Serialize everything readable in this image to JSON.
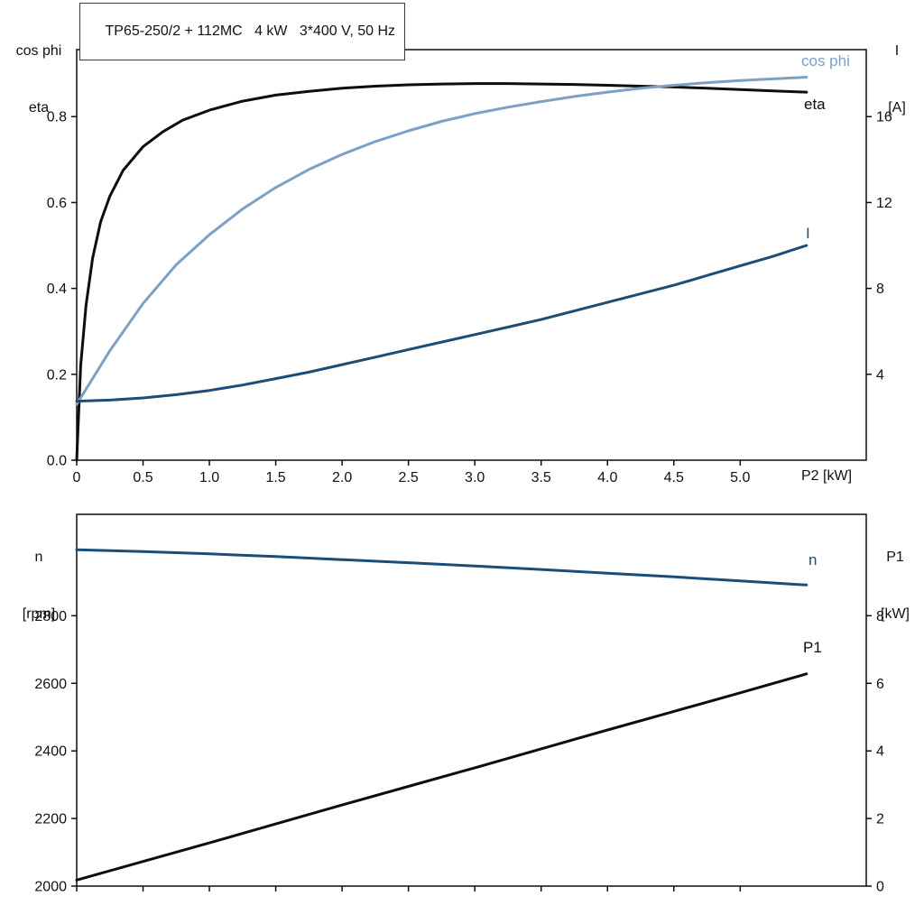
{
  "title": "TP65-250/2 + 112MC   4 kW   3*400 V, 50 Hz",
  "colors": {
    "black": "#0d0d0d",
    "light_blue": "#7da0c4",
    "dark_blue": "#1a4d77",
    "axis": "#0d0d0d"
  },
  "top_chart": {
    "y_left_title": [
      "cos phi",
      "eta"
    ],
    "y_right_title": [
      "I",
      "[A]"
    ],
    "x_title": "P2 [kW]",
    "curve_labels": {
      "cos_phi": "cos phi",
      "eta": "eta",
      "current": "I"
    }
  },
  "bottom_chart": {
    "y_left_title": [
      "n",
      "[rpm]"
    ],
    "y_right_title": [
      "P1",
      "[kW]"
    ],
    "curve_labels": {
      "n": "n",
      "p1": "P1"
    }
  },
  "chart_data": [
    {
      "name": "motor-performance",
      "type": "line",
      "title": "TP65-250/2 + 112MC   4 kW   3*400 V, 50 Hz",
      "xlabel": "P2 [kW]",
      "ylabel_left": "cos phi / eta",
      "ylabel_right": "I [A]",
      "xlim": [
        0,
        5.95
      ],
      "ylim_left": [
        0,
        0.956
      ],
      "ylim_right": [
        0,
        19.12
      ],
      "grid": false,
      "legend_position": "inline-right",
      "x_ticks": {
        "values": [
          0,
          0.5,
          1.0,
          1.5,
          2.0,
          2.5,
          3.0,
          3.5,
          4.0,
          4.5,
          5.0
        ],
        "labels": [
          "0",
          "0.5",
          "1.0",
          "1.5",
          "2.0",
          "2.5",
          "3.0",
          "3.5",
          "4.0",
          "4.5",
          "5.0"
        ]
      },
      "y_ticks_left": {
        "values": [
          0.0,
          0.2,
          0.4,
          0.6,
          0.8
        ],
        "labels": [
          "0.0",
          "0.2",
          "0.4",
          "0.6",
          "0.8"
        ]
      },
      "y_ticks_right": {
        "values": [
          4,
          8,
          12,
          16
        ],
        "labels": [
          "4",
          "8",
          "12",
          "16"
        ]
      },
      "series": [
        {
          "id": "eta",
          "name": "eta",
          "axis": "left",
          "color": "black",
          "points": [
            [
              0,
              0
            ],
            [
              0.03,
              0.22
            ],
            [
              0.07,
              0.36
            ],
            [
              0.12,
              0.47
            ],
            [
              0.18,
              0.555
            ],
            [
              0.25,
              0.615
            ],
            [
              0.35,
              0.675
            ],
            [
              0.5,
              0.73
            ],
            [
              0.65,
              0.765
            ],
            [
              0.8,
              0.792
            ],
            [
              1.0,
              0.815
            ],
            [
              1.25,
              0.836
            ],
            [
              1.5,
              0.85
            ],
            [
              1.75,
              0.859
            ],
            [
              2.0,
              0.866
            ],
            [
              2.25,
              0.871
            ],
            [
              2.5,
              0.874
            ],
            [
              2.75,
              0.876
            ],
            [
              3.0,
              0.877
            ],
            [
              3.25,
              0.877
            ],
            [
              3.5,
              0.876
            ],
            [
              3.75,
              0.875
            ],
            [
              4.0,
              0.873
            ],
            [
              4.25,
              0.871
            ],
            [
              4.5,
              0.869
            ],
            [
              4.75,
              0.866
            ],
            [
              5.0,
              0.863
            ],
            [
              5.25,
              0.86
            ],
            [
              5.5,
              0.857
            ]
          ]
        },
        {
          "id": "cos-phi",
          "name": "cos phi",
          "axis": "left",
          "color": "light_blue",
          "points": [
            [
              0,
              0.13
            ],
            [
              0.25,
              0.255
            ],
            [
              0.5,
              0.365
            ],
            [
              0.75,
              0.455
            ],
            [
              1.0,
              0.525
            ],
            [
              1.25,
              0.585
            ],
            [
              1.5,
              0.635
            ],
            [
              1.75,
              0.677
            ],
            [
              2.0,
              0.712
            ],
            [
              2.25,
              0.742
            ],
            [
              2.5,
              0.767
            ],
            [
              2.75,
              0.789
            ],
            [
              3.0,
              0.807
            ],
            [
              3.25,
              0.822
            ],
            [
              3.5,
              0.835
            ],
            [
              3.75,
              0.847
            ],
            [
              4.0,
              0.857
            ],
            [
              4.25,
              0.866
            ],
            [
              4.5,
              0.873
            ],
            [
              4.75,
              0.879
            ],
            [
              5.0,
              0.884
            ],
            [
              5.25,
              0.888
            ],
            [
              5.5,
              0.892
            ]
          ]
        },
        {
          "id": "current",
          "name": "I",
          "axis": "right",
          "color": "dark_blue",
          "points": [
            [
              0,
              2.75
            ],
            [
              0.25,
              2.8
            ],
            [
              0.5,
              2.9
            ],
            [
              0.75,
              3.05
            ],
            [
              1.0,
              3.25
            ],
            [
              1.25,
              3.5
            ],
            [
              1.5,
              3.8
            ],
            [
              1.75,
              4.1
            ],
            [
              2.0,
              4.45
            ],
            [
              2.25,
              4.8
            ],
            [
              2.5,
              5.15
            ],
            [
              2.75,
              5.5
            ],
            [
              3.0,
              5.85
            ],
            [
              3.25,
              6.2
            ],
            [
              3.5,
              6.55
            ],
            [
              3.75,
              6.95
            ],
            [
              4.0,
              7.35
            ],
            [
              4.25,
              7.75
            ],
            [
              4.5,
              8.15
            ],
            [
              4.75,
              8.6
            ],
            [
              5.0,
              9.05
            ],
            [
              5.25,
              9.5
            ],
            [
              5.5,
              10.0
            ]
          ]
        }
      ]
    },
    {
      "name": "speed-and-input-power",
      "type": "line",
      "title": "",
      "xlabel": "P2 [kW]",
      "ylabel_left": "n [rpm]",
      "ylabel_right": "P1 [kW]",
      "xlim": [
        0,
        5.95
      ],
      "ylim_left": [
        2000,
        3100
      ],
      "ylim_right": [
        0,
        11
      ],
      "grid": false,
      "legend_position": "inline-right",
      "x_ticks": {
        "values": [
          0,
          0.5,
          1.0,
          1.5,
          2.0,
          2.5,
          3.0,
          3.5,
          4.0,
          4.5,
          5.0
        ],
        "labels": [
          "",
          "",
          "",
          "",
          "",
          "",
          "",
          "",
          "",
          "",
          ""
        ]
      },
      "y_ticks_left": {
        "values": [
          2000,
          2200,
          2400,
          2600,
          2800
        ],
        "labels": [
          "2000",
          "2200",
          "2400",
          "2600",
          "2800"
        ]
      },
      "y_ticks_right": {
        "values": [
          0,
          2,
          4,
          6,
          8
        ],
        "labels": [
          "0",
          "2",
          "4",
          "6",
          "8"
        ]
      },
      "series": [
        {
          "id": "speed",
          "name": "n",
          "axis": "left",
          "color": "dark_blue",
          "points": [
            [
              0,
              2995
            ],
            [
              0.5,
              2990
            ],
            [
              1.0,
              2983
            ],
            [
              1.5,
              2975
            ],
            [
              2.0,
              2966
            ],
            [
              2.5,
              2957
            ],
            [
              3.0,
              2947
            ],
            [
              3.5,
              2937
            ],
            [
              4.0,
              2926
            ],
            [
              4.5,
              2915
            ],
            [
              5.0,
              2903
            ],
            [
              5.5,
              2891
            ]
          ]
        },
        {
          "id": "p1",
          "name": "P1",
          "axis": "right",
          "color": "black",
          "points": [
            [
              0,
              0.18
            ],
            [
              0.5,
              0.73
            ],
            [
              1.0,
              1.28
            ],
            [
              1.5,
              1.84
            ],
            [
              2.0,
              2.4
            ],
            [
              2.5,
              2.95
            ],
            [
              3.0,
              3.5
            ],
            [
              3.5,
              4.06
            ],
            [
              4.0,
              4.62
            ],
            [
              4.5,
              5.17
            ],
            [
              5.0,
              5.72
            ],
            [
              5.5,
              6.28
            ]
          ]
        }
      ]
    }
  ]
}
